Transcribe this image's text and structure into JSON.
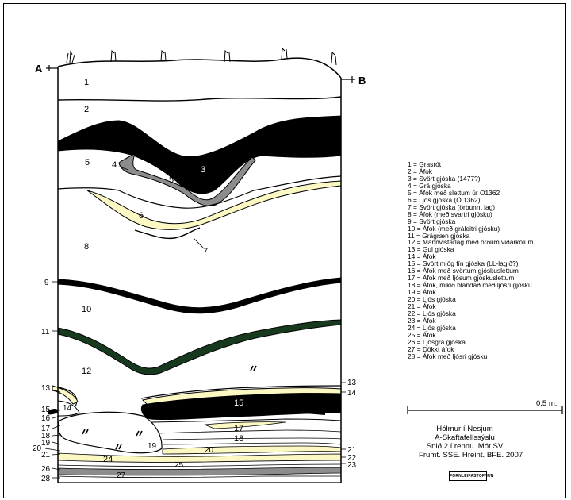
{
  "section": {
    "end_left": "A",
    "end_right": "B",
    "layer_labels": [
      "1",
      "2",
      "3",
      "4",
      "5",
      "5",
      "6",
      "7",
      "8",
      "9",
      "10",
      "11",
      "12",
      "13",
      "13",
      "14",
      "14",
      "15",
      "15",
      "16",
      "16",
      "17",
      "17",
      "18",
      "18",
      "19",
      "19",
      "20",
      "20",
      "21",
      "21",
      "22",
      "23",
      "24",
      "25",
      "26",
      "27",
      "28"
    ],
    "colors": {
      "black_tephra": "#000000",
      "grey_tephra": "#8c8c8c",
      "yellow_tephra": "#fbf8c4",
      "green_tephra": "#173a1f",
      "outline": "#000000"
    }
  },
  "legend": [
    "1 = Grasrót",
    "2 = Áfok",
    "3 = Svört gjóska (1477?)",
    "4 = Grá gjóska",
    "5 = Áfok með slettum úr Ö1362",
    "6 = Ljós gjóska (Ö 1362)",
    "7 = Svört gjóska (örþunnt lag)",
    "8 = Áfok (með svartri gjósku)",
    "9 = Svört gjóska",
    "10 = Áfok (með gráleitri gjósku)",
    "11 = Grágræn gjóska",
    "12 = Mannvistarlag með örðum viðarkolum",
    "13 = Gul gjóska",
    "14 = Áfok",
    "15 = Svört mjög fín gjóska (LL-lagið?)",
    "16 = Áfok með svörtum gjóskuslettum",
    "17 = Áfok með ljósum gjóskuslettum",
    "18 = Áfok, mikið blandað með ljósri gjósku",
    "19 = Áfok",
    "20 = Ljós gjóska",
    "21 = Áfok",
    "22 = Ljós gjóska",
    "23 = Áfok",
    "24 = Ljós gjóska",
    "25 = Áfok",
    "26 = Ljósgrá gjóska",
    "27 = Dökkt áfok",
    "28 = Áfok með ljósri gjósku"
  ],
  "scale": {
    "label": "0,5 m."
  },
  "caption": [
    "Hólmur í Nesjum",
    "A-Skaftafellssýslu",
    "Snið 2 í rennu. Mót SV",
    "Frumt. SSE. Hreint. BFE. 2007"
  ],
  "logo_text": "FORNLEIFASTOFNUN"
}
